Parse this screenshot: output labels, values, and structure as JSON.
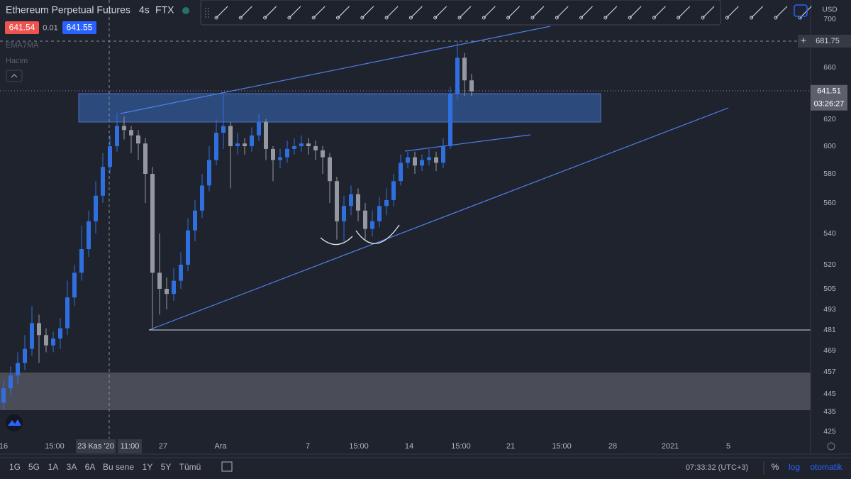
{
  "header": {
    "symbol": "Ethereum Perpetual Futures",
    "interval": "4s",
    "exchange": "FTX",
    "bid": "641.54",
    "spread": "0.01",
    "ask": "641.55"
  },
  "indicators": [
    "EMA7MA",
    "Hacim"
  ],
  "chart_data": {
    "type": "candlestick",
    "currency": "USD",
    "up_color": "#2f6fe0",
    "down_color": "#9598a1",
    "ohlc": [
      [
        440,
        452,
        436,
        448
      ],
      [
        448,
        460,
        444,
        455
      ],
      [
        455,
        468,
        450,
        462
      ],
      [
        462,
        478,
        458,
        470
      ],
      [
        470,
        495,
        466,
        485
      ],
      [
        485,
        490,
        462,
        478
      ],
      [
        478,
        482,
        468,
        472
      ],
      [
        472,
        480,
        468,
        476
      ],
      [
        476,
        488,
        470,
        482
      ],
      [
        482,
        510,
        478,
        500
      ],
      [
        500,
        520,
        495,
        515
      ],
      [
        515,
        545,
        510,
        530
      ],
      [
        530,
        555,
        525,
        548
      ],
      [
        548,
        575,
        540,
        565
      ],
      [
        565,
        595,
        560,
        585
      ],
      [
        585,
        608,
        580,
        600
      ],
      [
        600,
        625,
        596,
        615
      ],
      [
        615,
        622,
        605,
        612
      ],
      [
        612,
        615,
        595,
        608
      ],
      [
        608,
        612,
        590,
        602
      ],
      [
        602,
        606,
        560,
        580
      ],
      [
        580,
        585,
        481,
        515
      ],
      [
        515,
        540,
        490,
        505
      ],
      [
        505,
        512,
        493,
        502
      ],
      [
        502,
        518,
        498,
        510
      ],
      [
        510,
        528,
        505,
        520
      ],
      [
        520,
        550,
        516,
        542
      ],
      [
        542,
        562,
        535,
        555
      ],
      [
        555,
        580,
        550,
        572
      ],
      [
        572,
        600,
        568,
        590
      ],
      [
        590,
        620,
        586,
        610
      ],
      [
        610,
        640,
        598,
        615
      ],
      [
        615,
        618,
        570,
        600
      ],
      [
        600,
        610,
        594,
        602
      ],
      [
        602,
        606,
        594,
        600
      ],
      [
        600,
        614,
        596,
        608
      ],
      [
        608,
        624,
        604,
        618
      ],
      [
        618,
        620,
        590,
        598
      ],
      [
        598,
        600,
        575,
        590
      ],
      [
        590,
        598,
        584,
        592
      ],
      [
        592,
        604,
        588,
        598
      ],
      [
        598,
        606,
        594,
        600
      ],
      [
        600,
        608,
        596,
        602
      ],
      [
        602,
        606,
        594,
        600
      ],
      [
        600,
        604,
        590,
        597
      ],
      [
        597,
        600,
        580,
        592
      ],
      [
        592,
        595,
        560,
        575
      ],
      [
        575,
        578,
        536,
        548
      ],
      [
        548,
        565,
        535,
        558
      ],
      [
        558,
        572,
        552,
        566
      ],
      [
        566,
        570,
        548,
        555
      ],
      [
        555,
        560,
        536,
        543
      ],
      [
        543,
        555,
        538,
        548
      ],
      [
        548,
        564,
        544,
        558
      ],
      [
        558,
        570,
        552,
        562
      ],
      [
        562,
        580,
        558,
        575
      ],
      [
        575,
        594,
        572,
        588
      ],
      [
        588,
        596,
        584,
        592
      ],
      [
        592,
        596,
        580,
        586
      ],
      [
        586,
        594,
        582,
        590
      ],
      [
        590,
        598,
        586,
        592
      ],
      [
        592,
        596,
        582,
        588
      ],
      [
        588,
        606,
        584,
        600
      ],
      [
        600,
        645,
        598,
        640
      ],
      [
        640,
        681.75,
        635,
        668
      ],
      [
        668,
        672,
        638,
        650
      ],
      [
        650,
        655,
        638,
        641.51
      ]
    ],
    "yticks": [
      700,
      660,
      620,
      600,
      580,
      560,
      540,
      520,
      505,
      493,
      481,
      469,
      457,
      445,
      435,
      425
    ],
    "xticks": [
      "16",
      "15:00",
      "23 Kas '20",
      "11:00",
      "27",
      "Ara",
      "7",
      "15:00",
      "14",
      "15:00",
      "21",
      "15:00",
      "28",
      "2021",
      "5"
    ],
    "price_labels": {
      "crosshair": "681.75",
      "last": "641.51",
      "countdown": "03:26:27"
    }
  },
  "footer": {
    "ranges": [
      "1G",
      "5G",
      "1A",
      "3A",
      "6A",
      "Bu sene",
      "1Y",
      "5Y",
      "Tümü"
    ],
    "time": "07:33:32 (UTC+3)",
    "percent": "%",
    "log": "log",
    "auto": "otomatik"
  }
}
